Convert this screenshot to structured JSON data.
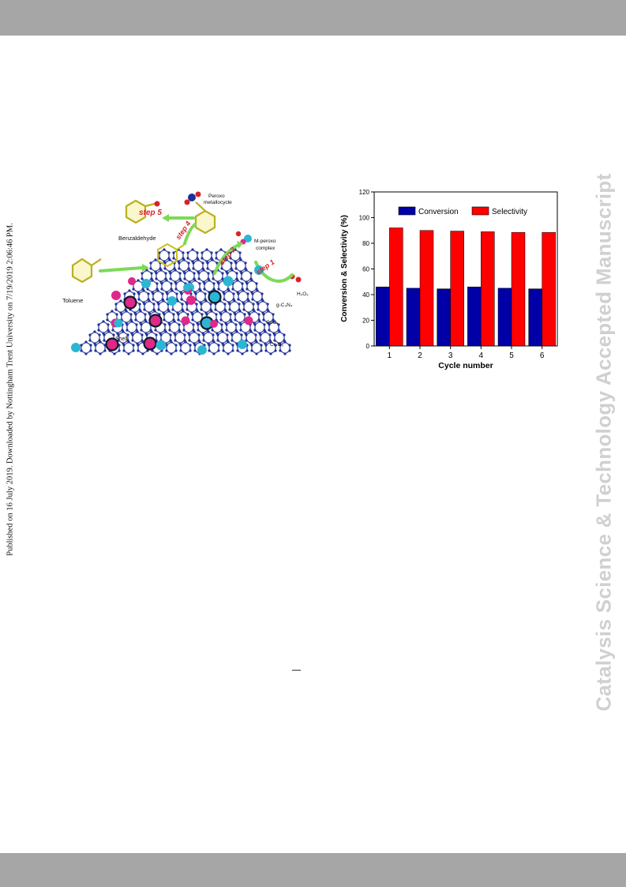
{
  "side_text": {
    "published": "Published on 16 July 2019. Downloaded by Nottingham Trent University on 7/19/2019 2:06:46 PM.",
    "journal": "Catalysis Science & Technology Accepted Manuscript"
  },
  "scheme": {
    "labels": {
      "benzaldehyde": "Benzaldehyde",
      "peroxo_line1": "Peroxo",
      "peroxo_line2": "metallocycle",
      "m_peroxo_line1": "M-peroxo",
      "m_peroxo_line2": "complex",
      "toluene": "Toluene",
      "h2o2": "H₂O₂",
      "gc3n4": "g-C₃N₄",
      "cuox": "CuOₓ",
      "shell": "Shell",
      "cr2o3": "Cr₂O₃",
      "step5": "step 5",
      "step4": "step 4",
      "step2": "step 2",
      "step1": "step 1"
    },
    "colors": {
      "cyan": "#2bb7d4",
      "magenta": "#e0288a",
      "navy": "#1f2f9a",
      "yellow": "#e8e03a",
      "green": "#7ed957"
    }
  },
  "chart_data": {
    "type": "bar",
    "categories": [
      "1",
      "2",
      "3",
      "4",
      "5",
      "6"
    ],
    "series": [
      {
        "name": "Conversion",
        "values": [
          46,
          45,
          44.5,
          46,
          45,
          44.5
        ],
        "color": "#0000a6"
      },
      {
        "name": "Selectivity",
        "values": [
          92,
          90,
          89.5,
          89,
          88.5,
          88.5
        ],
        "color": "#ff0000"
      }
    ],
    "xlabel": "Cycle number",
    "ylabel": "Conversion & Selectivity (%)",
    "ylim": [
      0,
      120
    ],
    "yticks": [
      0,
      20,
      40,
      60,
      80,
      100,
      120
    ],
    "legend_position": "top"
  },
  "footer_mark": "—"
}
